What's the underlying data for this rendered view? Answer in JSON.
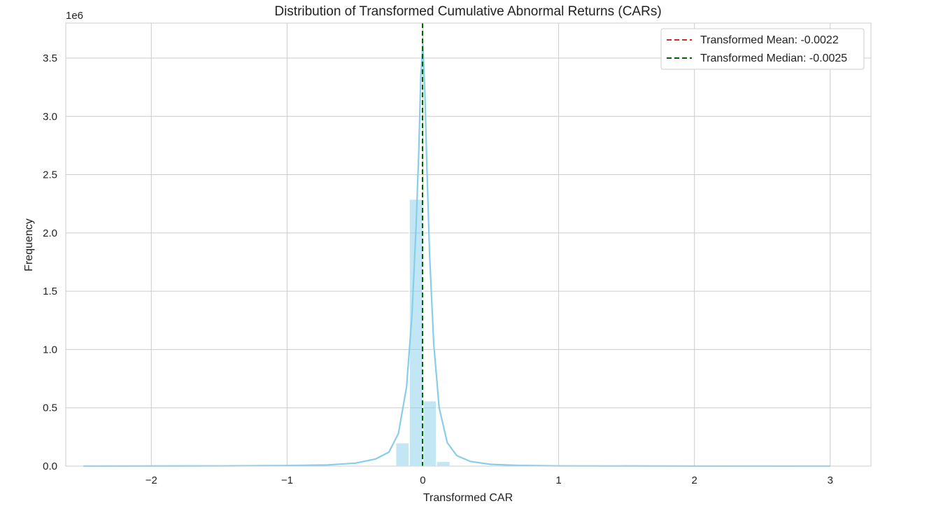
{
  "chart_data": {
    "type": "bar",
    "title": "Distribution of Transformed Cumulative Abnormal Returns (CARs)",
    "xlabel": "Transformed CAR",
    "ylabel": "Frequency",
    "y_offset_label": "1e6",
    "xlim": [
      -2.63,
      3.3
    ],
    "ylim": [
      0,
      3800000
    ],
    "x_ticks": [
      -2,
      -1,
      0,
      1,
      2,
      3
    ],
    "x_tick_labels": [
      "−2",
      "−1",
      "0",
      "1",
      "2",
      "3"
    ],
    "y_ticks": [
      0,
      500000,
      1000000,
      1500000,
      2000000,
      2500000,
      3000000,
      3500000
    ],
    "y_tick_labels": [
      "0.0",
      "0.5",
      "1.0",
      "1.5",
      "2.0",
      "2.5",
      "3.0",
      "3.5"
    ],
    "grid": true,
    "legend_position": "top-right",
    "histogram": {
      "color": "#87ceeb",
      "bins": [
        {
          "x0": -0.2,
          "x1": -0.1,
          "value": 200000
        },
        {
          "x0": -0.1,
          "x1": 0.0,
          "value": 2290000
        },
        {
          "x0": 0.0,
          "x1": 0.1,
          "value": 560000
        },
        {
          "x0": 0.1,
          "x1": 0.2,
          "value": 40000
        }
      ]
    },
    "kde": {
      "color": "#87ceeb",
      "x": [
        -2.5,
        -1.5,
        -1.0,
        -0.7,
        -0.5,
        -0.35,
        -0.25,
        -0.18,
        -0.12,
        -0.08,
        -0.05,
        -0.03,
        -0.015,
        0.0,
        0.015,
        0.03,
        0.05,
        0.08,
        0.12,
        0.18,
        0.25,
        0.35,
        0.5,
        0.7,
        1.0,
        2.0,
        3.0
      ],
      "y": [
        0,
        2000,
        5000,
        10000,
        25000,
        60000,
        120000,
        280000,
        680000,
        1300000,
        2050000,
        2700000,
        3350000,
        3620000,
        3200000,
        2550000,
        1800000,
        1050000,
        500000,
        200000,
        90000,
        40000,
        15000,
        6000,
        2000,
        500,
        0
      ]
    },
    "vlines": [
      {
        "name": "Transformed Mean: -0.0022",
        "x": -0.0022,
        "color": "#d62728",
        "style": "dashed"
      },
      {
        "name": "Transformed Median: -0.0025",
        "x": -0.0025,
        "color": "#006400",
        "style": "dashed"
      }
    ]
  }
}
